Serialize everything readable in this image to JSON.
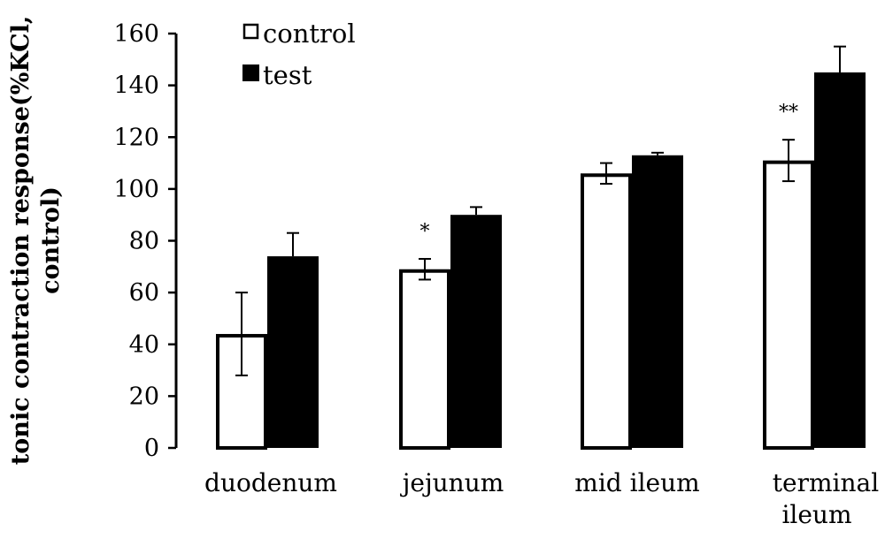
{
  "chart_data": {
    "type": "bar",
    "categories": [
      [
        "duodenum"
      ],
      [
        "jejunum"
      ],
      [
        "mid ileum"
      ],
      [
        "terminal",
        "ileum"
      ]
    ],
    "series": [
      {
        "name": "control",
        "values": [
          44,
          69,
          106,
          111
        ],
        "errors": [
          16,
          4,
          4,
          8
        ],
        "color": "#ffffff",
        "stroke": "#000000"
      },
      {
        "name": "test",
        "values": [
          74,
          90,
          113,
          145
        ],
        "errors": [
          9,
          3,
          1,
          10
        ],
        "color": "#000000",
        "stroke": "#000000"
      }
    ],
    "annotations": [
      "",
      "*",
      "",
      "**"
    ],
    "ylabel": [
      "tonic contraction response(%KCl,",
      "control)"
    ],
    "ylim": [
      0,
      160
    ],
    "yticks": [
      0,
      20,
      40,
      60,
      80,
      100,
      120,
      140,
      160
    ],
    "legend_position": "top-left",
    "grid": false
  }
}
